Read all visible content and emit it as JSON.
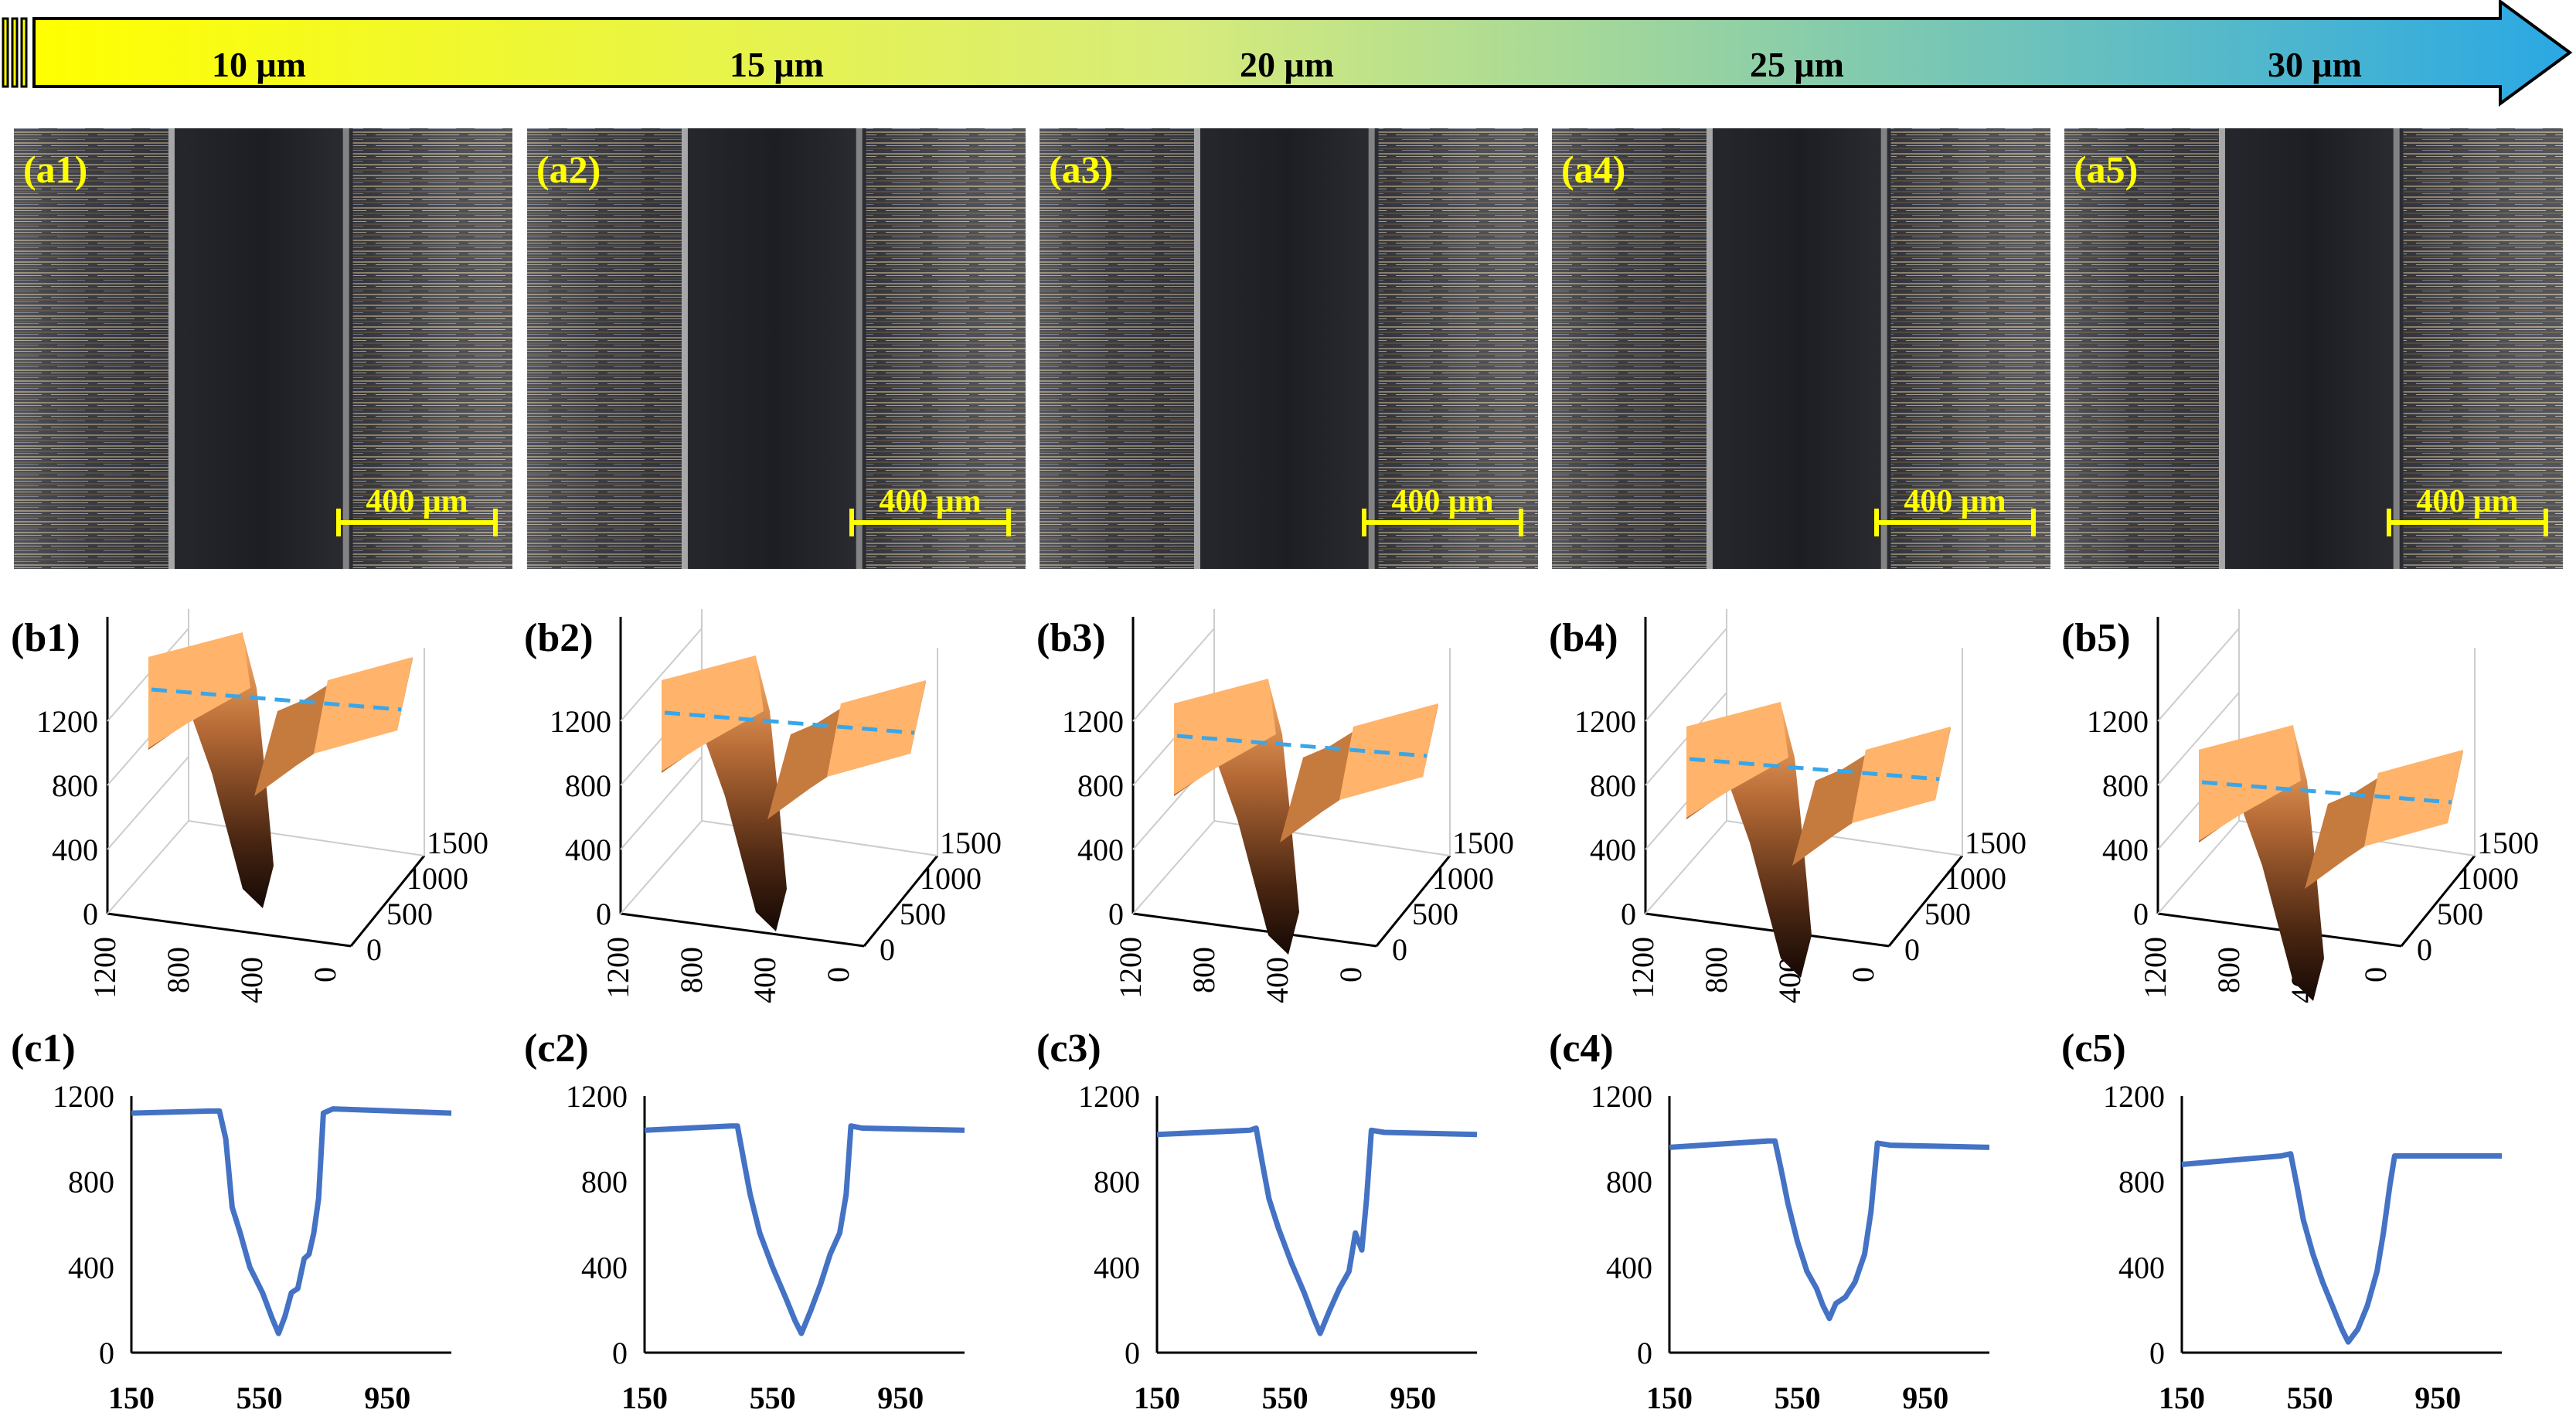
{
  "arrow": {
    "labels": [
      "10 μm",
      "15 μm",
      "20 μm",
      "25 μm",
      "30 μm"
    ],
    "gradient": [
      "#ffff00",
      "#d8ec7a",
      "#2aa8e4"
    ]
  },
  "colors": {
    "panel_label": "#ffff00",
    "scale_bar": "#ffff00",
    "profile_line": "#4472c4",
    "surface_light": "#ffb36b",
    "surface_dark": "#201008",
    "dash_line": "#3aa6e8"
  },
  "micrographs": [
    {
      "label": "(a1)",
      "scale": "400 μm"
    },
    {
      "label": "(a2)",
      "scale": "400 μm"
    },
    {
      "label": "(a3)",
      "scale": "400 μm"
    },
    {
      "label": "(a4)",
      "scale": "400 μm"
    },
    {
      "label": "(a5)",
      "scale": "400 μm"
    }
  ],
  "surfaces": [
    {
      "label": "(b1)",
      "z_ticks": [
        "0",
        "400",
        "800",
        "1200"
      ],
      "x_ticks": [
        "1200",
        "800",
        "400",
        "0"
      ],
      "y_ticks": [
        "0",
        "500",
        "1000",
        "1500"
      ]
    },
    {
      "label": "(b2)",
      "z_ticks": [
        "0",
        "400",
        "800",
        "1200"
      ],
      "x_ticks": [
        "1200",
        "800",
        "400",
        "0"
      ],
      "y_ticks": [
        "0",
        "500",
        "1000",
        "1500"
      ]
    },
    {
      "label": "(b3)",
      "z_ticks": [
        "0",
        "400",
        "800",
        "1200"
      ],
      "x_ticks": [
        "1200",
        "800",
        "400",
        "0"
      ],
      "y_ticks": [
        "0",
        "500",
        "1000",
        "1500"
      ]
    },
    {
      "label": "(b4)",
      "z_ticks": [
        "0",
        "400",
        "800",
        "1200"
      ],
      "x_ticks": [
        "1200",
        "800",
        "400",
        "0"
      ],
      "y_ticks": [
        "0",
        "500",
        "1000",
        "1500"
      ]
    },
    {
      "label": "(b5)",
      "z_ticks": [
        "0",
        "400",
        "800",
        "1200"
      ],
      "x_ticks": [
        "1200",
        "800",
        "400",
        "0"
      ],
      "y_ticks": [
        "0",
        "500",
        "1000",
        "1500"
      ]
    }
  ],
  "chart_data": [
    {
      "type": "line",
      "label": "(c1)",
      "x_ticks": [
        150,
        550,
        950
      ],
      "y_ticks": [
        0,
        400,
        800,
        1200
      ],
      "xlim": [
        150,
        1150
      ],
      "ylim": [
        0,
        1200
      ],
      "series": [
        {
          "values": [
            [
              150,
              1120
            ],
            [
              400,
              1130
            ],
            [
              425,
              1130
            ],
            [
              445,
              1000
            ],
            [
              465,
              680
            ],
            [
              490,
              560
            ],
            [
              520,
              400
            ],
            [
              560,
              280
            ],
            [
              590,
              160
            ],
            [
              610,
              90
            ],
            [
              630,
              170
            ],
            [
              650,
              280
            ],
            [
              670,
              300
            ],
            [
              690,
              440
            ],
            [
              705,
              460
            ],
            [
              720,
              560
            ],
            [
              735,
              720
            ],
            [
              750,
              1120
            ],
            [
              780,
              1140
            ],
            [
              1150,
              1120
            ]
          ]
        }
      ]
    },
    {
      "type": "line",
      "label": "(c2)",
      "x_ticks": [
        150,
        550,
        950
      ],
      "y_ticks": [
        0,
        400,
        800,
        1200
      ],
      "xlim": [
        150,
        1150
      ],
      "ylim": [
        0,
        1200
      ],
      "series": [
        {
          "values": [
            [
              150,
              1040
            ],
            [
              420,
              1060
            ],
            [
              440,
              1060
            ],
            [
              460,
              900
            ],
            [
              480,
              740
            ],
            [
              510,
              560
            ],
            [
              550,
              400
            ],
            [
              590,
              260
            ],
            [
              620,
              150
            ],
            [
              640,
              90
            ],
            [
              670,
              200
            ],
            [
              700,
              320
            ],
            [
              730,
              460
            ],
            [
              760,
              560
            ],
            [
              780,
              740
            ],
            [
              795,
              1060
            ],
            [
              830,
              1050
            ],
            [
              1150,
              1040
            ]
          ]
        }
      ]
    },
    {
      "type": "line",
      "label": "(c3)",
      "x_ticks": [
        150,
        550,
        950
      ],
      "y_ticks": [
        0,
        400,
        800,
        1200
      ],
      "xlim": [
        150,
        1150
      ],
      "ylim": [
        0,
        1200
      ],
      "series": [
        {
          "values": [
            [
              150,
              1020
            ],
            [
              440,
              1040
            ],
            [
              460,
              1050
            ],
            [
              480,
              880
            ],
            [
              500,
              720
            ],
            [
              530,
              580
            ],
            [
              570,
              420
            ],
            [
              610,
              280
            ],
            [
              640,
              160
            ],
            [
              660,
              90
            ],
            [
              690,
              200
            ],
            [
              720,
              300
            ],
            [
              750,
              380
            ],
            [
              770,
              560
            ],
            [
              790,
              480
            ],
            [
              805,
              720
            ],
            [
              820,
              1040
            ],
            [
              860,
              1030
            ],
            [
              1150,
              1020
            ]
          ]
        }
      ]
    },
    {
      "type": "line",
      "label": "(c4)",
      "x_ticks": [
        150,
        550,
        950
      ],
      "y_ticks": [
        0,
        400,
        800,
        1200
      ],
      "xlim": [
        150,
        1150
      ],
      "ylim": [
        0,
        1200
      ],
      "series": [
        {
          "values": [
            [
              150,
              960
            ],
            [
              460,
              990
            ],
            [
              480,
              990
            ],
            [
              500,
              850
            ],
            [
              520,
              700
            ],
            [
              550,
              520
            ],
            [
              580,
              380
            ],
            [
              610,
              300
            ],
            [
              630,
              220
            ],
            [
              650,
              160
            ],
            [
              670,
              230
            ],
            [
              700,
              260
            ],
            [
              730,
              330
            ],
            [
              760,
              460
            ],
            [
              780,
              660
            ],
            [
              800,
              980
            ],
            [
              840,
              970
            ],
            [
              1150,
              960
            ]
          ]
        }
      ]
    },
    {
      "type": "line",
      "label": "(c5)",
      "x_ticks": [
        150,
        550,
        950
      ],
      "y_ticks": [
        0,
        400,
        800,
        1200
      ],
      "xlim": [
        150,
        1150
      ],
      "ylim": [
        0,
        1200
      ],
      "series": [
        {
          "values": [
            [
              150,
              880
            ],
            [
              460,
              920
            ],
            [
              490,
              930
            ],
            [
              510,
              780
            ],
            [
              530,
              620
            ],
            [
              560,
              460
            ],
            [
              590,
              330
            ],
            [
              620,
              220
            ],
            [
              650,
              110
            ],
            [
              670,
              50
            ],
            [
              700,
              110
            ],
            [
              730,
              220
            ],
            [
              760,
              380
            ],
            [
              780,
              560
            ],
            [
              800,
              780
            ],
            [
              815,
              920
            ],
            [
              860,
              920
            ],
            [
              1150,
              920
            ]
          ]
        }
      ]
    }
  ]
}
